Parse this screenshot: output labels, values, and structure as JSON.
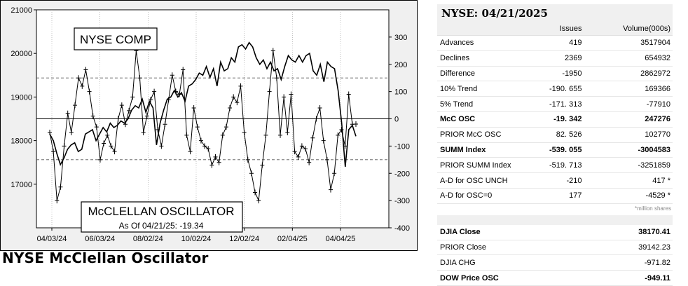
{
  "heading": "NYSE McClellan Oscillator",
  "chart_data": {
    "type": "line",
    "boxes": {
      "index_label": "NYSE COMP",
      "osc_label": "McCLELLAN OSCILLATOR",
      "asof_label": "As Of 04/21/25: -19.34"
    },
    "x_tick_labels": [
      "04/03/24",
      "06/03/24",
      "08/02/24",
      "10/02/24",
      "12/02/24",
      "02/04/25",
      "04/04/25"
    ],
    "left_axis": {
      "ylim": [
        16000,
        21000
      ],
      "ticks": [
        17000,
        18000,
        19000,
        20000,
        21000
      ]
    },
    "right_axis": {
      "ylim": [
        -400,
        400
      ],
      "ticks": [
        300,
        200,
        100,
        0,
        -100,
        -200,
        -300,
        -400
      ]
    },
    "reference_lines": [
      150,
      -150,
      0
    ],
    "series": [
      {
        "name": "NYSE COMP",
        "axis": "left",
        "marker": "none",
        "values": [
          18150,
          18000,
          17700,
          17450,
          17600,
          17800,
          17900,
          17950,
          17750,
          17800,
          18150,
          18200,
          18250,
          18000,
          18150,
          18300,
          18200,
          18400,
          18300,
          18350,
          18450,
          18400,
          18500,
          18700,
          18800,
          18750,
          18950,
          18650,
          18900,
          18750,
          17900,
          18400,
          18700,
          18950,
          19000,
          19150,
          19000,
          19100,
          18900,
          19250,
          19300,
          19400,
          19550,
          19500,
          19700,
          19450,
          19650,
          19250,
          19800,
          19600,
          19650,
          19900,
          19800,
          20150,
          20200,
          20100,
          20250,
          20150,
          19900,
          19750,
          19850,
          19650,
          19800,
          19600,
          19650,
          19400,
          19700,
          19950,
          19850,
          19800,
          19950,
          19800,
          19950,
          20000,
          19600,
          19500,
          19750,
          19350,
          19800,
          19700,
          19650,
          19150,
          18400,
          17400,
          18250,
          18350,
          18100
        ]
      },
      {
        "name": "McCLELLAN OSCILLATOR",
        "axis": "right",
        "marker": "plus",
        "values": [
          -50,
          -120,
          -300,
          -250,
          -100,
          20,
          -50,
          50,
          150,
          120,
          180,
          100,
          10,
          -30,
          -150,
          -90,
          -60,
          -100,
          -120,
          0,
          50,
          -20,
          30,
          80,
          250,
          150,
          -50,
          10,
          70,
          100,
          -40,
          -100,
          -20,
          70,
          160,
          100,
          90,
          180,
          -60,
          -120,
          40,
          -30,
          -80,
          -100,
          -110,
          -170,
          -140,
          -160,
          -60,
          -30,
          40,
          80,
          60,
          120,
          -50,
          -150,
          -200,
          -270,
          -300,
          -170,
          -60,
          100,
          250,
          150,
          -60,
          80,
          -50,
          90,
          -120,
          -140,
          -100,
          -110,
          -160,
          -70,
          0,
          40,
          -80,
          -150,
          -260,
          -200,
          -60,
          -40,
          -100,
          90,
          -20,
          -19.34
        ]
      }
    ]
  },
  "side": {
    "title": "NYSE: 04/21/2025",
    "col_issues": "Issues",
    "col_volume": "Volume(000s)",
    "rows": [
      {
        "label": "Advances",
        "issues": "419",
        "volume": "3517904",
        "bold": false
      },
      {
        "label": "Declines",
        "issues": "2369",
        "volume": "654932",
        "bold": false
      },
      {
        "label": "Difference",
        "issues": "-1950",
        "volume": "2862972",
        "bold": false
      },
      {
        "label": "10% Trend",
        "issues": "-190. 655",
        "volume": "169366",
        "bold": false
      },
      {
        "label": "5% Trend",
        "issues": "-171. 313",
        "volume": "-77910",
        "bold": false
      },
      {
        "label": "McC OSC",
        "issues": "-19. 342",
        "volume": "247276",
        "bold": true
      },
      {
        "label": "PRIOR McC OSC",
        "issues": "82. 526",
        "volume": "102770",
        "bold": false
      },
      {
        "label": "SUMM Index",
        "issues": "-539. 055",
        "volume": "-3004583",
        "bold": true
      },
      {
        "label": "PRIOR SUMM Index",
        "issues": "-519. 713",
        "volume": "-3251859",
        "bold": false
      },
      {
        "label": "A-D for OSC UNCH",
        "issues": "-210",
        "volume": "417 *",
        "bold": false
      },
      {
        "label": "A-D for OSC=0",
        "issues": "177",
        "volume": "-4529 *",
        "bold": false
      }
    ],
    "note": "*million shares",
    "dow_rows": [
      {
        "label": "DJIA Close",
        "value": "38170.41",
        "bold": true
      },
      {
        "label": "PRIOR Close",
        "value": "39142.23",
        "bold": false
      },
      {
        "label": "DJIA CHG",
        "value": "-971.82",
        "bold": false
      },
      {
        "label": "DOW Price OSC",
        "value": "-949.11",
        "bold": true
      }
    ]
  },
  "colors": {
    "line": "#000000",
    "panel_bg": "#f0f0f0",
    "ref_dashed": "#555555"
  }
}
